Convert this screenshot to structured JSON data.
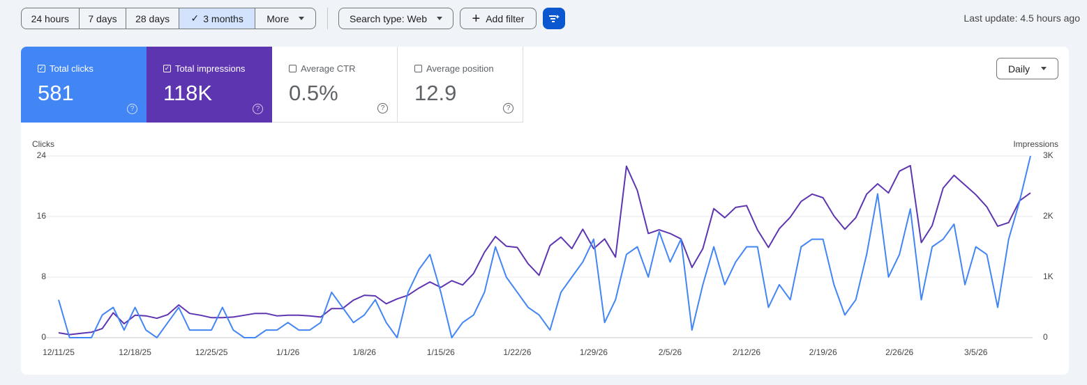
{
  "toolbar": {
    "date_ranges": [
      "24 hours",
      "7 days",
      "28 days",
      "3 months",
      "More"
    ],
    "search_type": "Search type: Web",
    "add_filter": "Add filter",
    "last_update": "Last update: 4.5 hours ago"
  },
  "metrics": [
    {
      "label": "Total clicks",
      "value": "581"
    },
    {
      "label": "Total impressions",
      "value": "118K"
    },
    {
      "label": "Average CTR",
      "value": "0.5%"
    },
    {
      "label": "Average position",
      "value": "12.9"
    }
  ],
  "granularity": "Daily",
  "chart_data": {
    "type": "line",
    "categories": [
      "12/11/25",
      null,
      null,
      null,
      null,
      null,
      null,
      "12/18/25",
      null,
      null,
      null,
      null,
      null,
      null,
      "12/25/25",
      null,
      null,
      null,
      null,
      null,
      null,
      "1/1/26",
      null,
      null,
      null,
      null,
      null,
      null,
      "1/8/26",
      null,
      null,
      null,
      null,
      null,
      null,
      "1/15/26",
      null,
      null,
      null,
      null,
      null,
      null,
      "1/22/26",
      null,
      null,
      null,
      null,
      null,
      null,
      "1/29/26",
      null,
      null,
      null,
      null,
      null,
      null,
      "2/5/26",
      null,
      null,
      null,
      null,
      null,
      null,
      "2/12/26",
      null,
      null,
      null,
      null,
      null,
      null,
      "2/19/26",
      null,
      null,
      null,
      null,
      null,
      null,
      "2/26/26",
      null,
      null,
      null,
      null,
      null,
      null,
      "3/5/26",
      null,
      null,
      null,
      null,
      null
    ],
    "series": [
      {
        "name": "Clicks",
        "color": "#4285f4",
        "axis": "y",
        "values": [
          5,
          0,
          0,
          0,
          3,
          4,
          1,
          4,
          1,
          0,
          2,
          4,
          1,
          1,
          1,
          4,
          1,
          0,
          0,
          1,
          1,
          2,
          1,
          1,
          2,
          6,
          4,
          2,
          3,
          5,
          2,
          0,
          6,
          9,
          11,
          6,
          0,
          2,
          3,
          6,
          12,
          8,
          6,
          4,
          3,
          1,
          6,
          8,
          10,
          13,
          2,
          5,
          11,
          12,
          8,
          14,
          10,
          13,
          1,
          7,
          12,
          7,
          10,
          12,
          12,
          4,
          7,
          5,
          12,
          13,
          13,
          7,
          3,
          5,
          11,
          19,
          8,
          11,
          17,
          5,
          12,
          13,
          15,
          7,
          12,
          11,
          4,
          13,
          18,
          24
        ]
      },
      {
        "name": "Impressions",
        "color": "#5e35b1",
        "axis": "y2",
        "values": [
          80,
          50,
          70,
          90,
          150,
          410,
          230,
          370,
          360,
          320,
          380,
          540,
          400,
          370,
          330,
          330,
          340,
          370,
          400,
          400,
          360,
          370,
          370,
          360,
          340,
          480,
          480,
          620,
          700,
          690,
          560,
          640,
          700,
          820,
          920,
          830,
          940,
          870,
          1060,
          1410,
          1670,
          1510,
          1490,
          1220,
          1030,
          1520,
          1660,
          1470,
          1790,
          1470,
          1630,
          1330,
          2830,
          2430,
          1720,
          1780,
          1720,
          1630,
          1160,
          1470,
          2130,
          1980,
          2150,
          2180,
          1780,
          1490,
          1800,
          1990,
          2250,
          2370,
          2310,
          2010,
          1790,
          1980,
          2370,
          2540,
          2390,
          2750,
          2840,
          1570,
          1850,
          2470,
          2680,
          2520,
          2360,
          2160,
          1840,
          1900,
          2260,
          2390
        ]
      }
    ],
    "ylim": [
      0,
      24
    ],
    "yticks": [
      0,
      8,
      16,
      24
    ],
    "y2lim": [
      0,
      3000
    ],
    "y2ticks": [
      0,
      {
        "value": 1000,
        "label": "1K"
      },
      {
        "value": 2000,
        "label": "2K"
      },
      {
        "value": 3000,
        "label": "3K"
      }
    ],
    "grid": true
  }
}
